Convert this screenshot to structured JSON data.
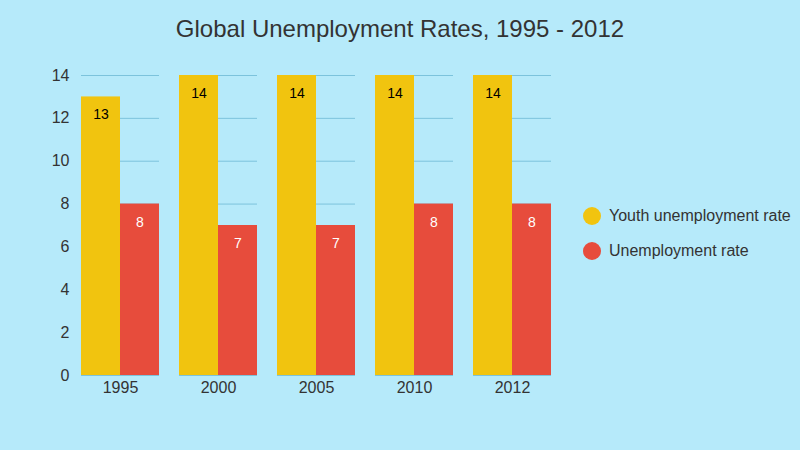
{
  "chart_data": {
    "type": "bar",
    "title": "Global Unemployment Rates, 1995 - 2012",
    "categories": [
      "1995",
      "2000",
      "2005",
      "2010",
      "2012"
    ],
    "series": [
      {
        "name": "Youth unemployment rate",
        "color": "#f1c40f",
        "values": [
          13,
          14,
          14,
          14,
          14
        ]
      },
      {
        "name": "Unemployment rate",
        "color": "#e74c3c",
        "values": [
          8,
          7,
          7,
          8,
          8
        ]
      }
    ],
    "ylim": [
      0,
      14
    ],
    "yticks": [
      0,
      2,
      4,
      6,
      8,
      10,
      12,
      14
    ],
    "grid": true,
    "data_labels": true,
    "legend": "right"
  }
}
